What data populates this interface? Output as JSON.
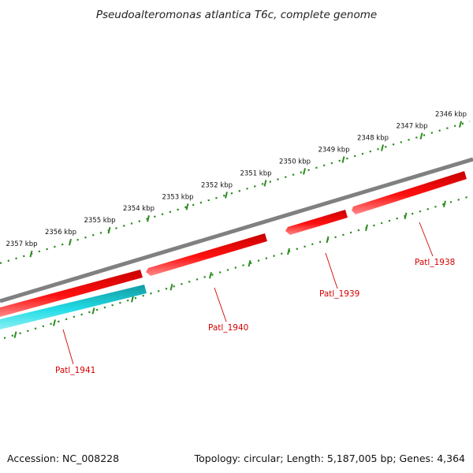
{
  "title": "Pseudoalteromonas atlantica T6c, complete genome",
  "footer": {
    "accession": "Accession: NC_008228",
    "summary": "Topology: circular; Length: 5,187,005 bp; Genes: 4,364"
  },
  "colors": {
    "backbone": "#808080",
    "forward_gene": "#ee0000",
    "reverse_gene": "#00c8d2",
    "ticks": "#2e8b22",
    "gene_label": "#d40000"
  },
  "scale_ticks": [
    {
      "label": "2346 kbp"
    },
    {
      "label": "2347 kbp"
    },
    {
      "label": "2348 kbp"
    },
    {
      "label": "2349 kbp"
    },
    {
      "label": "2350 kbp"
    },
    {
      "label": "2351 kbp"
    },
    {
      "label": "2352 kbp"
    },
    {
      "label": "2353 kbp"
    },
    {
      "label": "2354 kbp"
    },
    {
      "label": "2355 kbp"
    },
    {
      "label": "2356 kbp"
    },
    {
      "label": "2357 kbp"
    }
  ],
  "genes": [
    {
      "name": "Patl_1938",
      "strand": "forward"
    },
    {
      "name": "Patl_1939",
      "strand": "forward"
    },
    {
      "name": "Patl_1940",
      "strand": "forward"
    },
    {
      "name": "Patl_1941",
      "strand": "reverse"
    }
  ]
}
